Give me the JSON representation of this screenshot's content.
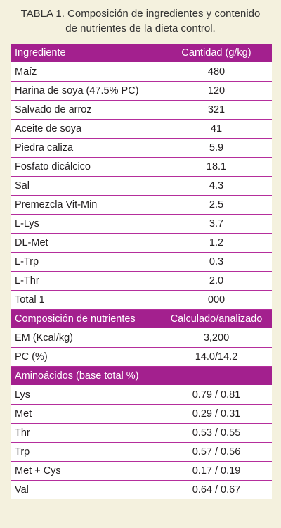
{
  "caption": {
    "line1": "TABLA 1. Composición de ingredientes y contenido",
    "line2": "de nutrientes de la dieta control."
  },
  "colors": {
    "header_bg": "#a3208e",
    "rule": "#b52e9c",
    "panel_bg": "#f4f1de"
  },
  "ingredients": {
    "header": [
      "Ingrediente",
      "Cantidad (g/kg)"
    ],
    "rows": [
      [
        "Maíz",
        "480"
      ],
      [
        "Harina de soya (47.5% PC)",
        "120"
      ],
      [
        "Salvado de arroz",
        "321"
      ],
      [
        "Aceite de soya",
        "41"
      ],
      [
        "Piedra caliza",
        "5.9"
      ],
      [
        "Fosfato dicálcico",
        "18.1"
      ],
      [
        "Sal",
        "4.3"
      ],
      [
        "Premezcla Vit-Min",
        "2.5"
      ],
      [
        "L-Lys",
        "3.7"
      ],
      [
        "DL-Met",
        "1.2"
      ],
      [
        "L-Trp",
        "0.3"
      ],
      [
        "L-Thr",
        "2.0"
      ],
      [
        "Total 1",
        "000"
      ]
    ]
  },
  "nutrients": {
    "header": [
      "Composición de nutrientes",
      "Calculado/analizado"
    ],
    "rows": [
      [
        "EM (Kcal/kg)",
        "3,200"
      ],
      [
        "PC (%)",
        "14.0/14.2"
      ]
    ]
  },
  "aminoacids": {
    "header": "Aminoácidos (base total %)",
    "rows": [
      [
        "Lys",
        "0.79 / 0.81"
      ],
      [
        "Met",
        "0.29 / 0.31"
      ],
      [
        "Thr",
        "0.53 / 0.55"
      ],
      [
        "Trp",
        "0.57 / 0.56"
      ],
      [
        "Met + Cys",
        "0.17 / 0.19"
      ],
      [
        "Val",
        "0.64 / 0.67"
      ]
    ]
  }
}
